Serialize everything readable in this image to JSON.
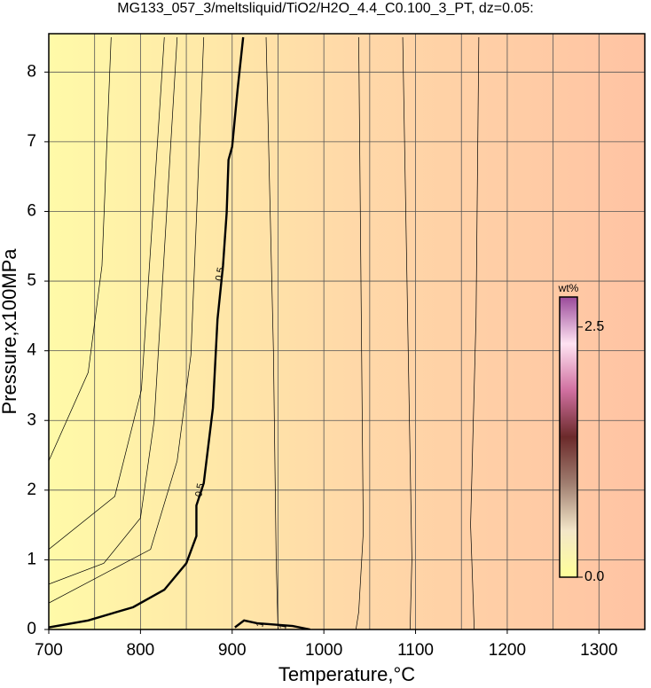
{
  "chart_data": {
    "type": "contour",
    "title": "MG133_057_3/meltsliquid/TiO2/H2O_4.4_C0.100_3_PT, dz=0.05:",
    "xlabel": "Temperature,°C",
    "ylabel": "Pressure,x100MPa",
    "xlim": [
      700,
      1350
    ],
    "ylim": [
      0,
      8.5
    ],
    "xticks": [
      700,
      800,
      900,
      1000,
      1100,
      1200,
      1300
    ],
    "xgrid": [
      700,
      750,
      800,
      850,
      900,
      950,
      1000,
      1050,
      1100,
      1150,
      1200,
      1250,
      1300,
      1350
    ],
    "yticks": [
      0,
      1,
      2,
      3,
      4,
      5,
      6,
      7,
      8
    ],
    "background_colors": [
      "#fffaa8",
      "#ffd9a8",
      "#ffc3a3"
    ],
    "series": [
      {
        "name": "0.5",
        "bold": true,
        "x": [
          700,
          743,
          792,
          826,
          850,
          861,
          861,
          869,
          879,
          884,
          890,
          894,
          896,
          900,
          906,
          912
        ],
        "y": [
          0.03,
          0.13,
          0.32,
          0.57,
          0.95,
          1.34,
          1.78,
          2.1,
          3.18,
          4.45,
          5.22,
          5.98,
          6.74,
          6.93,
          7.76,
          8.5
        ]
      },
      {
        "name": "1",
        "bold": true,
        "x": [
          903,
          913,
          927,
          966,
          985
        ],
        "y": [
          0.03,
          0.13,
          0.09,
          0.05,
          0
        ]
      },
      {
        "x": [
          700,
          743,
          758,
          768
        ],
        "y": [
          2.42,
          3.69,
          5.22,
          8.5
        ]
      },
      {
        "x": [
          700,
          772,
          801,
          826
        ],
        "y": [
          1.15,
          1.91,
          3.44,
          8.5
        ]
      },
      {
        "x": [
          700,
          811,
          840,
          855,
          869
        ],
        "y": [
          0.38,
          1.15,
          2.42,
          3.94,
          8.5
        ]
      },
      {
        "x": [
          700,
          760,
          800,
          815,
          840
        ],
        "y": [
          0.65,
          0.95,
          1.6,
          3.0,
          8.5
        ]
      },
      {
        "x": [
          1038,
          1043,
          1038,
          1035
        ],
        "y": [
          8.5,
          1.4,
          0.25,
          0
        ]
      },
      {
        "x": [
          1086,
          1092,
          1096,
          1094
        ],
        "y": [
          8.5,
          4.0,
          1.0,
          0
        ]
      },
      {
        "x": [
          1169,
          1166,
          1160,
          1164
        ],
        "y": [
          8.5,
          4.5,
          1.5,
          0
        ]
      },
      {
        "x": [
          937,
          945,
          948,
          950
        ],
        "y": [
          8.5,
          4.0,
          1.0,
          0
        ]
      }
    ],
    "annotations": [
      {
        "text": "0.5",
        "x": 887,
        "y": 5.1
      },
      {
        "text": "0.5",
        "x": 865,
        "y": 2.0
      },
      {
        "text": "1",
        "x": 931,
        "y": 0.07
      },
      {
        "text": "1",
        "x": 956,
        "y": 0.04
      }
    ],
    "colorbar": {
      "label": "wt%",
      "lim": [
        0,
        2.8
      ],
      "ticks": [
        {
          "value": 0,
          "label": "0.0"
        },
        {
          "value": 2.5,
          "label": "2.5"
        }
      ],
      "colors": [
        "#ffff99",
        "#f3e6c8",
        "#a07e70",
        "#6b2a2a",
        "#d070a0",
        "#ffe3f2",
        "#9a4a9a"
      ]
    }
  }
}
